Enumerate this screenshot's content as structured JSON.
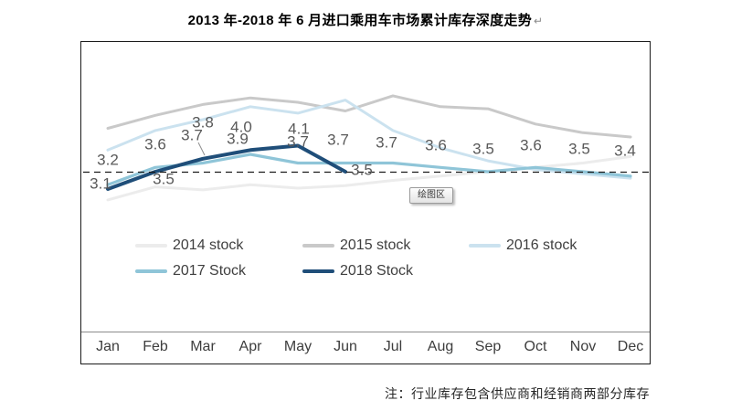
{
  "title": {
    "text": "2013 年-2018 年 6 月进口乘用车市场累计库存深度走势",
    "mark": "↵"
  },
  "note": "注：行业库存包含供应商和经销商两部分库存",
  "tooltip": "绘图区",
  "months": [
    "Jan",
    "Feb",
    "Mar",
    "Apr",
    "May",
    "Jun",
    "Jul",
    "Aug",
    "Sep",
    "Oct",
    "Nov",
    "Dec"
  ],
  "legend": [
    {
      "label": "2014 stock",
      "color": "#ececec"
    },
    {
      "label": "2015 stock",
      "color": "#c9c9c9"
    },
    {
      "label": "2016 stock",
      "color": "#cbe2ef"
    },
    {
      "label": "2017 Stock",
      "color": "#8fc5d8"
    },
    {
      "label": "2018 Stock",
      "color": "#1f4e79"
    }
  ],
  "chart_data": {
    "type": "line",
    "categories": [
      "Jan",
      "Feb",
      "Mar",
      "Apr",
      "May",
      "Jun",
      "Jul",
      "Aug",
      "Sep",
      "Oct",
      "Nov",
      "Dec"
    ],
    "title": "2013 年-2018 年 6 月进口乘用车市场累计库存深度走势",
    "xlabel": "",
    "ylabel": "",
    "ylim": [
      2.6,
      5.6
    ],
    "grid": false,
    "legend_position": "below-plot",
    "reference_line": {
      "value": 3.5,
      "style": "dashed",
      "color": "#1a1a1a"
    },
    "series": [
      {
        "name": "2014 stock",
        "color": "#ececec",
        "stroke_width": 3,
        "labels_shown": false,
        "estimated": true,
        "values": [
          2.85,
          3.15,
          3.08,
          3.2,
          3.12,
          3.18,
          3.3,
          3.4,
          3.5,
          3.6,
          3.7,
          3.85
        ]
      },
      {
        "name": "2015 stock",
        "color": "#c9c9c9",
        "stroke_width": 3,
        "labels_shown": false,
        "estimated": true,
        "values": [
          4.5,
          4.8,
          5.05,
          5.2,
          5.1,
          4.9,
          5.25,
          5.0,
          4.95,
          4.6,
          4.4,
          4.3
        ]
      },
      {
        "name": "2016 stock",
        "color": "#cbe2ef",
        "stroke_width": 3,
        "labels_shown": false,
        "estimated": true,
        "values": [
          4.0,
          4.45,
          4.7,
          5.0,
          4.85,
          5.15,
          4.45,
          4.05,
          3.75,
          3.55,
          3.45,
          3.35
        ]
      },
      {
        "name": "2017 Stock",
        "color": "#8fc5d8",
        "stroke_width": 3.2,
        "labels_shown": true,
        "values": [
          3.2,
          3.6,
          3.7,
          3.9,
          3.7,
          3.7,
          3.7,
          3.6,
          3.5,
          3.6,
          3.5,
          3.4
        ]
      },
      {
        "name": "2018 Stock",
        "color": "#1f4e79",
        "stroke_width": 4,
        "labels_shown": true,
        "values": [
          3.1,
          3.5,
          3.8,
          4.0,
          4.1,
          3.5
        ]
      }
    ]
  }
}
